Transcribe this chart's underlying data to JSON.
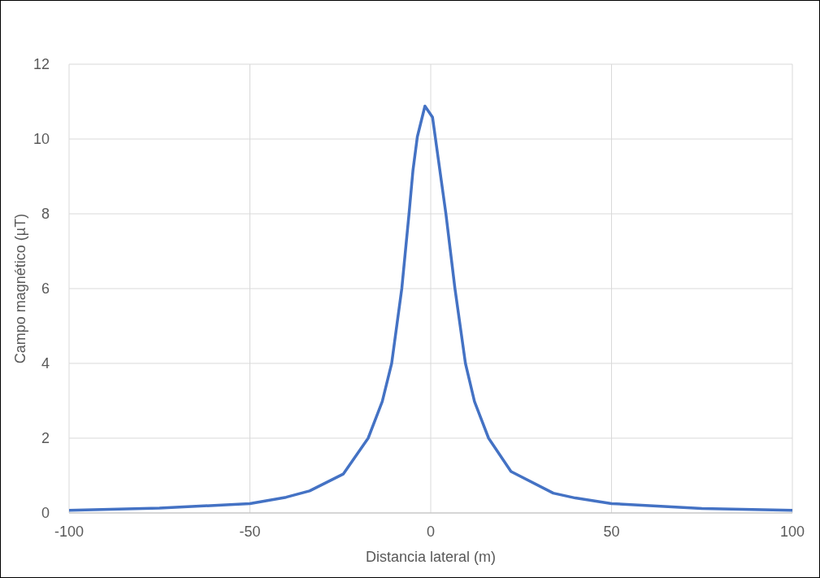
{
  "chart_data": {
    "type": "line",
    "xlabel": "Distancia lateral (m)",
    "ylabel": "Campo magnético (µT)",
    "x": [
      -100,
      -75,
      -50,
      -40,
      -33.5,
      -24.2,
      -17.3,
      -13.4,
      -10.8,
      -8.0,
      -6.0,
      -4.9,
      -3.7,
      -1.6,
      0.5,
      2.1,
      4.2,
      6.7,
      9.6,
      12.1,
      16.0,
      22.2,
      33.9,
      40,
      50,
      75,
      100
    ],
    "series": [
      {
        "color": "#4472c4",
        "values": [
          0.07,
          0.13,
          0.25,
          0.42,
          0.59,
          1.04,
          2.0,
          2.98,
          4.0,
          6.0,
          8.0,
          9.17,
          10.06,
          10.88,
          10.58,
          9.46,
          8.0,
          6.0,
          4.0,
          2.98,
          2.0,
          1.11,
          0.53,
          0.4,
          0.25,
          0.12,
          0.07
        ]
      }
    ],
    "xlim": [
      -100,
      100
    ],
    "xticks": [
      -100,
      -50,
      0,
      50,
      100
    ],
    "ylim": [
      0,
      12
    ],
    "yticks": [
      0,
      2,
      4,
      6,
      8,
      10,
      12
    ],
    "grid": true,
    "legend": false,
    "marker": "none",
    "line_style": "solid"
  }
}
